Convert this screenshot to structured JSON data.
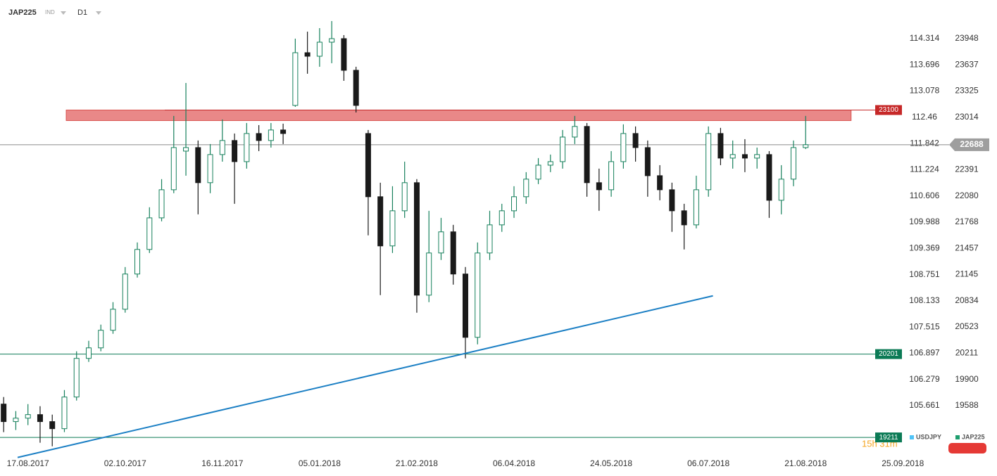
{
  "header": {
    "symbol": "JAP225",
    "market": "IND",
    "timeframe": "D1"
  },
  "chart_data": {
    "type": "candlestick",
    "candles": {
      "open": [
        19607,
        19399,
        19440,
        19482,
        19399,
        19315,
        19691,
        20150,
        20275,
        20484,
        20734,
        21152,
        21444,
        21819,
        22153,
        22612,
        22654,
        22237,
        22571,
        22738,
        22487,
        22821,
        22738,
        22863,
        23155,
        23781,
        23739,
        23906,
        23948,
        23572,
        22821,
        22070,
        21486,
        21903,
        22237,
        20901,
        21402,
        21653,
        21152,
        20400,
        21402,
        21736,
        21903,
        22070,
        22279,
        22445,
        22487,
        22779,
        22905,
        22237,
        22153,
        22487,
        22821,
        22654,
        22320,
        22153,
        21903,
        21736,
        22153,
        22821,
        22529,
        22571,
        22529,
        22571,
        22028,
        22279,
        22654
      ],
      "high": [
        19691,
        19524,
        19607,
        19582,
        19482,
        19774,
        20234,
        20359,
        20551,
        20818,
        21235,
        21527,
        21945,
        22279,
        23030,
        23422,
        22738,
        22696,
        22988,
        22821,
        22946,
        22921,
        22946,
        22938,
        23948,
        24031,
        24073,
        24157,
        23990,
        23614,
        22863,
        22237,
        22195,
        22487,
        22279,
        21903,
        21819,
        21736,
        21235,
        21527,
        21903,
        21986,
        22195,
        22362,
        22529,
        22571,
        22863,
        23030,
        22946,
        22404,
        22612,
        22930,
        22905,
        22738,
        22445,
        22237,
        21986,
        22320,
        22905,
        22888,
        22738,
        22754,
        22654,
        22612,
        22445,
        22738,
        23030
      ],
      "low": [
        19274,
        19299,
        19357,
        19148,
        19106,
        19274,
        19649,
        20108,
        20234,
        20442,
        20693,
        21110,
        21402,
        21778,
        22112,
        22320,
        21861,
        22112,
        22487,
        21986,
        22404,
        22612,
        22654,
        22696,
        23138,
        23531,
        23614,
        23656,
        23447,
        23071,
        21611,
        20901,
        21402,
        21819,
        20693,
        20818,
        21319,
        21026,
        20150,
        20317,
        21319,
        21653,
        21819,
        21986,
        22220,
        22362,
        22404,
        22696,
        22070,
        21903,
        22070,
        22404,
        22487,
        22070,
        22028,
        21653,
        21444,
        21694,
        22070,
        22445,
        22404,
        22362,
        22404,
        21819,
        21861,
        22195,
        22637
      ],
      "close": [
        19399,
        19440,
        19482,
        19399,
        19315,
        19691,
        20150,
        20275,
        20484,
        20734,
        21152,
        21444,
        21819,
        22153,
        22654,
        22654,
        22237,
        22571,
        22738,
        22487,
        22821,
        22738,
        22863,
        22821,
        23781,
        23739,
        23906,
        23948,
        23572,
        23155,
        22070,
        21486,
        21903,
        22237,
        20901,
        21402,
        21653,
        21152,
        20400,
        21402,
        21736,
        21903,
        22070,
        22279,
        22445,
        22487,
        22779,
        22905,
        22237,
        22153,
        22487,
        22821,
        22654,
        22320,
        22153,
        21903,
        21736,
        22153,
        22821,
        22529,
        22571,
        22529,
        22571,
        22028,
        22279,
        22654,
        22688
      ]
    },
    "colors": {
      "up": "#16805c",
      "down": "#1a1a1a"
    },
    "xlim": [
      -0.3,
      81.4
    ],
    "xticks": [
      {
        "value": 2,
        "label": "17.08.2017"
      },
      {
        "value": 10,
        "label": "02.10.2017"
      },
      {
        "value": 18,
        "label": "16.11.2017"
      },
      {
        "value": 26,
        "label": "05.01.2018"
      },
      {
        "value": 34,
        "label": "21.02.2018"
      },
      {
        "value": 42,
        "label": "06.04.2018"
      },
      {
        "value": 50,
        "label": "24.05.2018"
      },
      {
        "value": 58,
        "label": "06.07.2018"
      },
      {
        "value": 66,
        "label": "21.08.2018"
      },
      {
        "value": 74,
        "label": "25.09.2018"
      }
    ],
    "ylim": [
      18995,
      24407
    ],
    "yticks": [
      23948,
      23637,
      23325,
      23014,
      22391,
      22080,
      21768,
      21457,
      21145,
      20834,
      20523,
      20211,
      19900,
      19588
    ],
    "y2lim": [
      104.485,
      115.225
    ],
    "y2ticks": [
      114.314,
      113.696,
      113.078,
      112.46,
      111.842,
      111.224,
      110.606,
      109.988,
      109.369,
      108.751,
      108.133,
      107.515,
      106.897,
      106.279,
      105.661
    ],
    "levels": [
      {
        "value": 23100,
        "color": "#c62828"
      },
      {
        "value": 20201,
        "color": "#0b7a55"
      },
      {
        "value": 19211,
        "color": "#0b7a55"
      }
    ],
    "last_price": 22688,
    "zone": {
      "x": [
        5.15,
        69.74
      ],
      "top": 23100,
      "bottom": 22975,
      "color": "#e57373"
    },
    "trendline": {
      "x": [
        1.15,
        58.37
      ],
      "y": [
        18973,
        20893
      ],
      "color": "#1b7fc4"
    },
    "countdown": "15h 31m",
    "legend": [
      {
        "name": "USDJPY",
        "color": "#4fc3f7"
      },
      {
        "name": "JAP225",
        "color": "#1e9e6e"
      }
    ]
  }
}
